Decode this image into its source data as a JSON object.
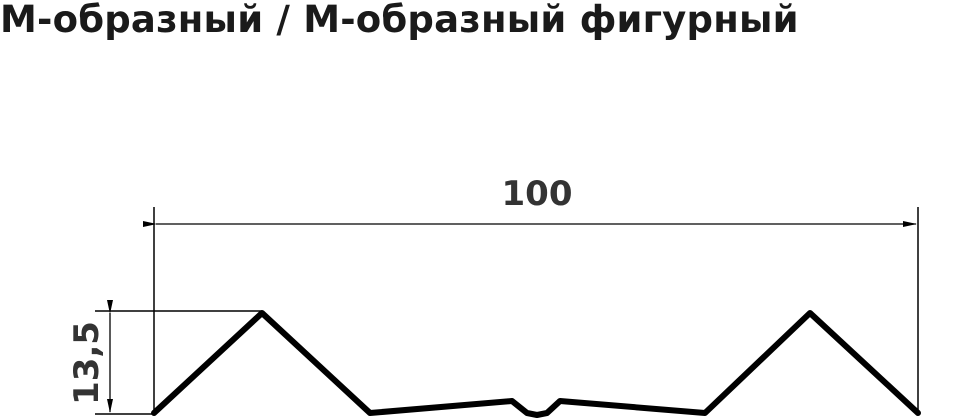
{
  "title": "М-образный / М-образный фигурный",
  "dimensions": {
    "width": "100",
    "height": "13,5"
  },
  "colors": {
    "profile": "#000000",
    "text": "#1a1a1a"
  }
}
